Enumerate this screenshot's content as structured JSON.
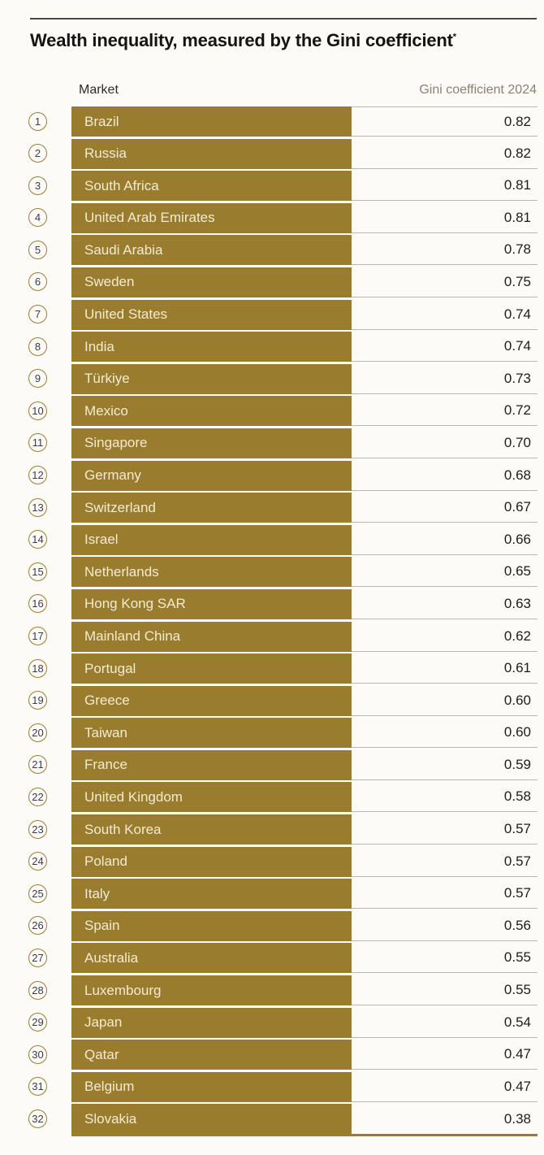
{
  "header": {
    "title": "Wealth inequality, measured by the Gini coefficient",
    "title_superscript": "*"
  },
  "table_headers": {
    "market": "Market",
    "gini": "Gini coefficient 2024"
  },
  "colors": {
    "bar_gold": "#9a7c2e",
    "bar_text_cream": "#f3ebd1",
    "rank_circle_outline": "#9b7d30",
    "rank_number": "#3b3b49",
    "row_separator_gray": "#bcb8af",
    "top_rule_dark": "#4a4a4a",
    "bottom_rule_gold": "#9b7d30",
    "gini_header_gray": "#8a8172",
    "page_background": "#fdfbf7"
  },
  "chart_data": {
    "type": "table",
    "title": "Wealth inequality, measured by the Gini coefficient*",
    "columns": [
      "Market",
      "Gini coefficient 2024"
    ],
    "legend_position": "none",
    "rows": [
      {
        "rank": 1,
        "market": "Brazil",
        "gini": "0.82"
      },
      {
        "rank": 2,
        "market": "Russia",
        "gini": "0.82"
      },
      {
        "rank": 3,
        "market": "South Africa",
        "gini": "0.81"
      },
      {
        "rank": 4,
        "market": "United Arab Emirates",
        "gini": "0.81"
      },
      {
        "rank": 5,
        "market": "Saudi Arabia",
        "gini": "0.78"
      },
      {
        "rank": 6,
        "market": "Sweden",
        "gini": "0.75"
      },
      {
        "rank": 7,
        "market": "United States",
        "gini": "0.74"
      },
      {
        "rank": 8,
        "market": "India",
        "gini": "0.74"
      },
      {
        "rank": 9,
        "market": "Türkiye",
        "gini": "0.73"
      },
      {
        "rank": 10,
        "market": "Mexico",
        "gini": "0.72"
      },
      {
        "rank": 11,
        "market": "Singapore",
        "gini": "0.70"
      },
      {
        "rank": 12,
        "market": "Germany",
        "gini": "0.68"
      },
      {
        "rank": 13,
        "market": "Switzerland",
        "gini": "0.67"
      },
      {
        "rank": 14,
        "market": "Israel",
        "gini": "0.66"
      },
      {
        "rank": 15,
        "market": "Netherlands",
        "gini": "0.65"
      },
      {
        "rank": 16,
        "market": "Hong Kong SAR",
        "gini": "0.63"
      },
      {
        "rank": 17,
        "market": "Mainland China",
        "gini": "0.62"
      },
      {
        "rank": 18,
        "market": "Portugal",
        "gini": "0.61"
      },
      {
        "rank": 19,
        "market": "Greece",
        "gini": "0.60"
      },
      {
        "rank": 20,
        "market": "Taiwan",
        "gini": "0.60"
      },
      {
        "rank": 21,
        "market": "France",
        "gini": "0.59"
      },
      {
        "rank": 22,
        "market": "United Kingdom",
        "gini": "0.58"
      },
      {
        "rank": 23,
        "market": "South Korea",
        "gini": "0.57"
      },
      {
        "rank": 24,
        "market": "Poland",
        "gini": "0.57"
      },
      {
        "rank": 25,
        "market": "Italy",
        "gini": "0.57"
      },
      {
        "rank": 26,
        "market": "Spain",
        "gini": "0.56"
      },
      {
        "rank": 27,
        "market": "Australia",
        "gini": "0.55"
      },
      {
        "rank": 28,
        "market": "Luxembourg",
        "gini": "0.55"
      },
      {
        "rank": 29,
        "market": "Japan",
        "gini": "0.54"
      },
      {
        "rank": 30,
        "market": "Qatar",
        "gini": "0.47"
      },
      {
        "rank": 31,
        "market": "Belgium",
        "gini": "0.47"
      },
      {
        "rank": 32,
        "market": "Slovakia",
        "gini": "0.38"
      }
    ]
  }
}
